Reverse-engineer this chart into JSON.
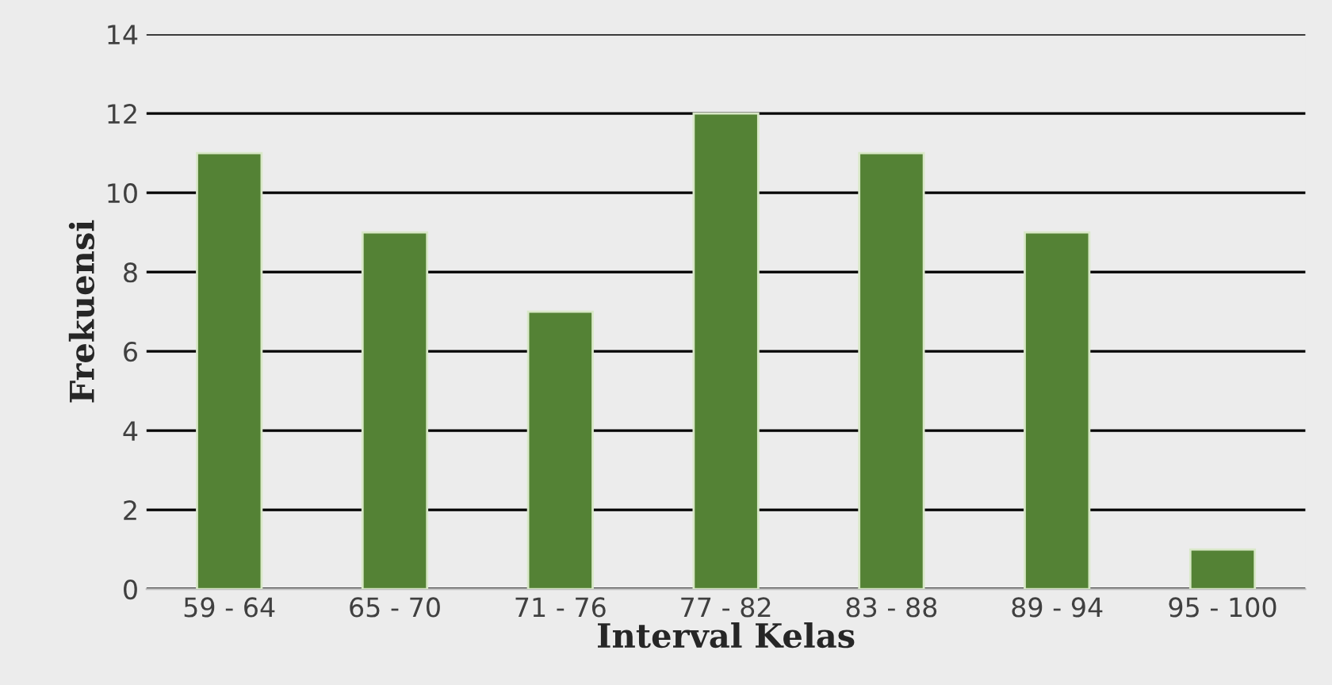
{
  "chart_data": {
    "type": "bar",
    "xlabel": "Interval Kelas",
    "ylabel": "Frekuensi",
    "categories": [
      "59 - 64",
      "65 - 70",
      "71 - 76",
      "77 - 82",
      "83 - 88",
      "89 - 94",
      "95 - 100"
    ],
    "values": [
      11,
      9,
      7,
      12,
      11,
      9,
      1
    ],
    "color": "#548235",
    "ylim": [
      0,
      14
    ],
    "yticks": [
      0,
      2,
      4,
      6,
      8,
      10,
      12,
      14
    ],
    "grid": "y",
    "legend": false
  }
}
